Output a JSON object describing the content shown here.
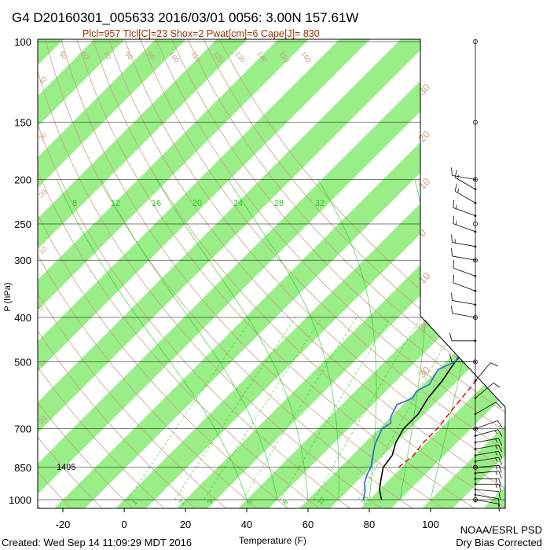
{
  "header": {
    "title": "G4 D20160301_005633 2016/03/01 0056:  3.00N 157.61W",
    "indices": "Plcl=957 Tlcl[C]=23 Shox=2 Pwat[cm]=6 Cape[J]= 830"
  },
  "footer": {
    "created": "Created: Wed Sep 14 11:09:29 MDT 2016",
    "org": "NOAA/ESRL PSD",
    "correction": "Dry Bias Corrected"
  },
  "annotation": {
    "surface_height": "1495"
  },
  "colors": {
    "temperature": "#000000",
    "dewpoint": "#3366dd",
    "parcel": "#dd0000",
    "isotherm_band": "#99ee88",
    "dry_adiabat": "#c8a080",
    "moist_adiabat": "#22cc22",
    "mixing_ratio": "#22cc22",
    "title_indices": "#993300"
  },
  "chart_data": {
    "type": "line",
    "xlabel": "Temperature (F)",
    "ylabel": "P (hPa)",
    "x_ticks": [
      "-20",
      "0",
      "20",
      "40",
      "60",
      "80",
      "100"
    ],
    "y_ticks": [
      "100",
      "150",
      "200",
      "250",
      "300",
      "400",
      "500",
      "700",
      "850",
      "1000"
    ],
    "skew_labels_top": [
      "50",
      "60",
      "70",
      "80",
      "90",
      "100",
      "110",
      "120",
      "130",
      "140",
      "150",
      "160"
    ],
    "skew_labels_right": [
      "30",
      "20",
      "10",
      "0",
      "10",
      "20",
      "30"
    ],
    "skew_labels_left": [
      "40",
      "30",
      "20",
      "10",
      "0",
      "10",
      "20"
    ],
    "moist_labels": [
      "8",
      "12",
      "16",
      "20",
      "24",
      "28",
      "32"
    ],
    "mixing_labels": [
      "1",
      "2",
      "3",
      "5",
      "8",
      "12",
      "20"
    ],
    "series": [
      {
        "key": "temperature",
        "points": [
          [
            84,
            1000
          ],
          [
            80,
            950
          ],
          [
            77,
            900
          ],
          [
            74,
            850
          ],
          [
            73,
            800
          ],
          [
            70,
            750
          ],
          [
            68,
            700
          ],
          [
            68,
            650
          ],
          [
            66,
            600
          ],
          [
            65,
            550
          ],
          [
            63,
            500
          ],
          [
            62,
            450
          ],
          [
            61,
            400
          ],
          [
            58,
            350
          ],
          [
            55,
            300
          ],
          [
            51,
            250
          ],
          [
            47,
            225
          ],
          [
            43,
            200
          ],
          [
            38,
            185
          ],
          [
            34,
            175
          ]
        ]
      },
      {
        "key": "dewpoint",
        "points": [
          [
            78,
            1000
          ],
          [
            76,
            960
          ],
          [
            73,
            920
          ],
          [
            71,
            880
          ],
          [
            70,
            850
          ],
          [
            68,
            820
          ],
          [
            66,
            790
          ],
          [
            64,
            760
          ],
          [
            63,
            740
          ],
          [
            62,
            720
          ],
          [
            61,
            700
          ],
          [
            62,
            680
          ],
          [
            60,
            660
          ],
          [
            59,
            640
          ],
          [
            58,
            620
          ],
          [
            61,
            600
          ],
          [
            60,
            580
          ],
          [
            62,
            560
          ],
          [
            61,
            540
          ],
          [
            60,
            520
          ],
          [
            63,
            500
          ],
          [
            62,
            480
          ],
          [
            61,
            460
          ],
          [
            58,
            440
          ],
          [
            59,
            420
          ],
          [
            56,
            400
          ],
          [
            55,
            385
          ],
          [
            53,
            370
          ],
          [
            50,
            355
          ],
          [
            48,
            340
          ],
          [
            44,
            325
          ],
          [
            40,
            310
          ],
          [
            36,
            300
          ],
          [
            34,
            290
          ],
          [
            32,
            280
          ],
          [
            30,
            270
          ],
          [
            28,
            260
          ],
          [
            26,
            250
          ],
          [
            24,
            240
          ],
          [
            24,
            230
          ],
          [
            26,
            220
          ],
          [
            27,
            210
          ],
          [
            27,
            200
          ]
        ]
      },
      {
        "key": "parcel",
        "points": [
          [
            79,
            850
          ],
          [
            80,
            800
          ],
          [
            79,
            750
          ],
          [
            79,
            700
          ],
          [
            78,
            650
          ],
          [
            77,
            600
          ],
          [
            76,
            550
          ],
          [
            75,
            500
          ],
          [
            73,
            450
          ],
          [
            71,
            400
          ],
          [
            68,
            350
          ],
          [
            64,
            300
          ],
          [
            58,
            250
          ],
          [
            51,
            210
          ],
          [
            44,
            190
          ],
          [
            38,
            178
          ]
        ]
      }
    ],
    "wind_barbs": [
      {
        "p": 1000,
        "dir": 100,
        "kt": 12
      },
      {
        "p": 975,
        "dir": 100,
        "kt": 12
      },
      {
        "p": 950,
        "dir": 95,
        "kt": 12
      },
      {
        "p": 925,
        "dir": 90,
        "kt": 15
      },
      {
        "p": 900,
        "dir": 90,
        "kt": 15
      },
      {
        "p": 875,
        "dir": 85,
        "kt": 15
      },
      {
        "p": 850,
        "dir": 85,
        "kt": 15
      },
      {
        "p": 825,
        "dir": 80,
        "kt": 15
      },
      {
        "p": 800,
        "dir": 80,
        "kt": 15
      },
      {
        "p": 775,
        "dir": 80,
        "kt": 15
      },
      {
        "p": 750,
        "dir": 80,
        "kt": 15
      },
      {
        "p": 725,
        "dir": 75,
        "kt": 15
      },
      {
        "p": 700,
        "dir": 70,
        "kt": 10
      },
      {
        "p": 650,
        "dir": 60,
        "kt": 10
      },
      {
        "p": 600,
        "dir": 50,
        "kt": 10
      },
      {
        "p": 550,
        "dir": 40,
        "kt": 10
      },
      {
        "p": 500,
        "dir": 270,
        "kt": 10
      },
      {
        "p": 450,
        "dir": 270,
        "kt": 10
      },
      {
        "p": 400,
        "dir": 280,
        "kt": 10
      },
      {
        "p": 375,
        "dir": 280,
        "kt": 10
      },
      {
        "p": 350,
        "dir": 290,
        "kt": 10
      },
      {
        "p": 325,
        "dir": 290,
        "kt": 10
      },
      {
        "p": 300,
        "dir": 280,
        "kt": 10
      },
      {
        "p": 280,
        "dir": 280,
        "kt": 15
      },
      {
        "p": 260,
        "dir": 290,
        "kt": 15
      },
      {
        "p": 240,
        "dir": 290,
        "kt": 15
      },
      {
        "p": 225,
        "dir": 300,
        "kt": 15
      },
      {
        "p": 210,
        "dir": 300,
        "kt": 15
      },
      {
        "p": 200,
        "dir": 280,
        "kt": 10
      }
    ]
  }
}
